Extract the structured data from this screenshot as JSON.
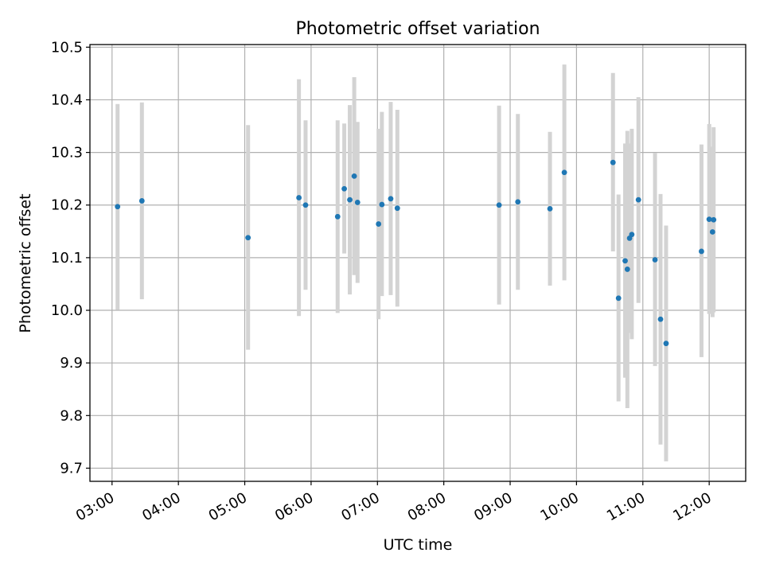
{
  "chart_data": {
    "type": "scatter",
    "title": "Photometric offset variation",
    "xlabel": "UTC time",
    "ylabel": "Photometric offset",
    "grid": true,
    "x_tick_labels": [
      "03:00",
      "04:00",
      "05:00",
      "06:00",
      "07:00",
      "08:00",
      "09:00",
      "10:00",
      "11:00",
      "12:00"
    ],
    "y_ticks": [
      9.7,
      9.8,
      9.9,
      10.0,
      10.1,
      10.2,
      10.3,
      10.4,
      10.5
    ],
    "y_tick_labels": [
      "9.7",
      "9.8",
      "9.9",
      "10.0",
      "10.1",
      "10.2",
      "10.3",
      "10.4",
      "10.5"
    ],
    "xlim": [
      "02:40",
      "12:33"
    ],
    "ylim": [
      9.675,
      10.505
    ],
    "colors": {
      "point": "#1f77b4",
      "errorbar": "#d3d3d3",
      "grid": "#b0b0b0"
    },
    "points": [
      {
        "x": "03:05",
        "y": 10.197,
        "ylo": 10.001,
        "yhi": 10.392
      },
      {
        "x": "03:27",
        "y": 10.208,
        "ylo": 10.021,
        "yhi": 10.395
      },
      {
        "x": "05:03",
        "y": 10.138,
        "ylo": 9.925,
        "yhi": 10.352
      },
      {
        "x": "05:49",
        "y": 10.214,
        "ylo": 9.989,
        "yhi": 10.439
      },
      {
        "x": "05:55",
        "y": 10.2,
        "ylo": 10.039,
        "yhi": 10.361
      },
      {
        "x": "06:24",
        "y": 10.178,
        "ylo": 9.995,
        "yhi": 10.361
      },
      {
        "x": "06:30",
        "y": 10.231,
        "ylo": 10.108,
        "yhi": 10.355
      },
      {
        "x": "06:35",
        "y": 10.21,
        "ylo": 10.03,
        "yhi": 10.39
      },
      {
        "x": "06:39",
        "y": 10.255,
        "ylo": 10.067,
        "yhi": 10.443
      },
      {
        "x": "06:42",
        "y": 10.205,
        "ylo": 10.052,
        "yhi": 10.358
      },
      {
        "x": "07:01",
        "y": 10.164,
        "ylo": 9.983,
        "yhi": 10.345
      },
      {
        "x": "07:04",
        "y": 10.201,
        "ylo": 10.027,
        "yhi": 10.377
      },
      {
        "x": "07:12",
        "y": 10.212,
        "ylo": 10.029,
        "yhi": 10.396
      },
      {
        "x": "07:18",
        "y": 10.194,
        "ylo": 10.007,
        "yhi": 10.381
      },
      {
        "x": "08:50",
        "y": 10.2,
        "ylo": 10.011,
        "yhi": 10.389
      },
      {
        "x": "09:07",
        "y": 10.206,
        "ylo": 10.039,
        "yhi": 10.373
      },
      {
        "x": "09:36",
        "y": 10.193,
        "ylo": 10.047,
        "yhi": 10.339
      },
      {
        "x": "09:49",
        "y": 10.262,
        "ylo": 10.057,
        "yhi": 10.467
      },
      {
        "x": "10:33",
        "y": 10.281,
        "ylo": 10.112,
        "yhi": 10.451
      },
      {
        "x": "10:38",
        "y": 10.023,
        "ylo": 9.827,
        "yhi": 10.22
      },
      {
        "x": "10:44",
        "y": 10.094,
        "ylo": 9.872,
        "yhi": 10.317
      },
      {
        "x": "10:46",
        "y": 10.078,
        "ylo": 9.814,
        "yhi": 10.341
      },
      {
        "x": "10:48",
        "y": 10.137,
        "ylo": 9.957,
        "yhi": 10.317
      },
      {
        "x": "10:50",
        "y": 10.144,
        "ylo": 9.945,
        "yhi": 10.345
      },
      {
        "x": "10:56",
        "y": 10.21,
        "ylo": 10.014,
        "yhi": 10.405
      },
      {
        "x": "11:11",
        "y": 10.096,
        "ylo": 9.894,
        "yhi": 10.299
      },
      {
        "x": "11:16",
        "y": 9.983,
        "ylo": 9.745,
        "yhi": 10.221
      },
      {
        "x": "11:21",
        "y": 9.937,
        "ylo": 9.713,
        "yhi": 10.161
      },
      {
        "x": "11:53",
        "y": 10.112,
        "ylo": 9.911,
        "yhi": 10.315
      },
      {
        "x": "12:00",
        "y": 10.173,
        "ylo": 9.993,
        "yhi": 10.354
      },
      {
        "x": "12:03",
        "y": 10.149,
        "ylo": 9.987,
        "yhi": 10.311
      },
      {
        "x": "12:04",
        "y": 10.172,
        "ylo": 9.996,
        "yhi": 10.348
      }
    ]
  }
}
